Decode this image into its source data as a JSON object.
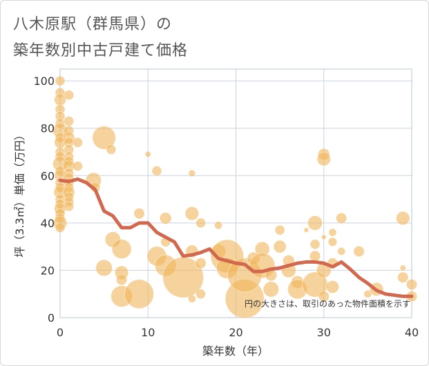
{
  "title_line1": "八木原駅（群馬県）の",
  "title_line2": "築年数別中古戸建て価格",
  "chart_data": {
    "type": "scatter",
    "title": "八木原駅（群馬県）の築年数別中古戸建て価格",
    "xlabel": "築年数（年）",
    "ylabel": "坪（3.3㎡）単価（万円）",
    "xlim": [
      0,
      40
    ],
    "ylim": [
      0,
      105
    ],
    "xticks": [
      0,
      10,
      20,
      30,
      40
    ],
    "yticks": [
      0,
      20,
      40,
      60,
      80,
      100
    ],
    "grid": true,
    "note": "円の大きさは、取引のあった物件面積を示す",
    "colors": {
      "bubble": "#f0b65a",
      "line": "#d2694f",
      "grid": "#c9d3df"
    },
    "bubbles": [
      {
        "x": 0,
        "y": 100,
        "s": 1
      },
      {
        "x": 0,
        "y": 95,
        "s": 1
      },
      {
        "x": 0,
        "y": 92,
        "s": 1.2
      },
      {
        "x": 0,
        "y": 88,
        "s": 1
      },
      {
        "x": 0,
        "y": 85,
        "s": 1
      },
      {
        "x": 0,
        "y": 82,
        "s": 1
      },
      {
        "x": 0,
        "y": 79,
        "s": 1.5
      },
      {
        "x": 0,
        "y": 76,
        "s": 1
      },
      {
        "x": 0,
        "y": 74,
        "s": 1.2
      },
      {
        "x": 0,
        "y": 70,
        "s": 1
      },
      {
        "x": 0,
        "y": 68,
        "s": 1
      },
      {
        "x": 0,
        "y": 65,
        "s": 1.5
      },
      {
        "x": 0,
        "y": 62,
        "s": 1
      },
      {
        "x": 0,
        "y": 60,
        "s": 1.2
      },
      {
        "x": 0,
        "y": 57,
        "s": 1
      },
      {
        "x": 0,
        "y": 55,
        "s": 1
      },
      {
        "x": 0,
        "y": 53,
        "s": 1.3
      },
      {
        "x": 0,
        "y": 50,
        "s": 1
      },
      {
        "x": 0,
        "y": 48,
        "s": 1
      },
      {
        "x": 0,
        "y": 46,
        "s": 1.2
      },
      {
        "x": 0,
        "y": 44,
        "s": 1
      },
      {
        "x": 0,
        "y": 42,
        "s": 1
      },
      {
        "x": 0,
        "y": 40,
        "s": 1.4
      },
      {
        "x": 0,
        "y": 38,
        "s": 1
      },
      {
        "x": 1,
        "y": 94,
        "s": 1
      },
      {
        "x": 1,
        "y": 83,
        "s": 1
      },
      {
        "x": 1,
        "y": 79,
        "s": 1
      },
      {
        "x": 1,
        "y": 76,
        "s": 1.2
      },
      {
        "x": 1,
        "y": 74,
        "s": 1
      },
      {
        "x": 1,
        "y": 71,
        "s": 1
      },
      {
        "x": 1,
        "y": 68,
        "s": 1
      },
      {
        "x": 1,
        "y": 66,
        "s": 1
      },
      {
        "x": 1,
        "y": 64,
        "s": 1.2
      },
      {
        "x": 1,
        "y": 61,
        "s": 1
      },
      {
        "x": 1,
        "y": 59,
        "s": 1
      },
      {
        "x": 1,
        "y": 57,
        "s": 1
      },
      {
        "x": 1,
        "y": 55,
        "s": 1
      },
      {
        "x": 1,
        "y": 53,
        "s": 1.2
      },
      {
        "x": 1,
        "y": 51,
        "s": 1
      },
      {
        "x": 1,
        "y": 49,
        "s": 1
      },
      {
        "x": 1,
        "y": 47,
        "s": 1
      },
      {
        "x": 2,
        "y": 74,
        "s": 1
      },
      {
        "x": 2,
        "y": 64,
        "s": 1
      },
      {
        "x": 3.8,
        "y": 58,
        "s": 1.6
      },
      {
        "x": 4,
        "y": 55,
        "s": 1
      },
      {
        "x": 5,
        "y": 76,
        "s": 2.4
      },
      {
        "x": 5.8,
        "y": 71,
        "s": 1
      },
      {
        "x": 5,
        "y": 21,
        "s": 1.7
      },
      {
        "x": 6,
        "y": 33,
        "s": 1.6
      },
      {
        "x": 7,
        "y": 29,
        "s": 2
      },
      {
        "x": 7,
        "y": 19,
        "s": 1.4
      },
      {
        "x": 7,
        "y": 16,
        "s": 1.1
      },
      {
        "x": 7,
        "y": 9,
        "s": 2.2
      },
      {
        "x": 9,
        "y": 10,
        "s": 3
      },
      {
        "x": 9,
        "y": 44,
        "s": 1.1
      },
      {
        "x": 10,
        "y": 69,
        "s": 0.6
      },
      {
        "x": 11,
        "y": 62,
        "s": 1
      },
      {
        "x": 12,
        "y": 42,
        "s": 1.2
      },
      {
        "x": 12,
        "y": 32,
        "s": 1
      },
      {
        "x": 11,
        "y": 26,
        "s": 2
      },
      {
        "x": 12,
        "y": 22,
        "s": 2.2
      },
      {
        "x": 14,
        "y": 17,
        "s": 4.2
      },
      {
        "x": 15,
        "y": 61,
        "s": 0.7
      },
      {
        "x": 15,
        "y": 44,
        "s": 1.4
      },
      {
        "x": 16,
        "y": 40,
        "s": 1
      },
      {
        "x": 15,
        "y": 28,
        "s": 1.3
      },
      {
        "x": 16,
        "y": 23,
        "s": 1.1
      },
      {
        "x": 16,
        "y": 10,
        "s": 1
      },
      {
        "x": 15,
        "y": 8,
        "s": 0.8
      },
      {
        "x": 18,
        "y": 39,
        "s": 0.8
      },
      {
        "x": 18,
        "y": 28,
        "s": 1.5
      },
      {
        "x": 19,
        "y": 26,
        "s": 3.4
      },
      {
        "x": 19,
        "y": 21,
        "s": 2.2
      },
      {
        "x": 21,
        "y": 8,
        "s": 4
      },
      {
        "x": 21,
        "y": 18,
        "s": 3.5
      },
      {
        "x": 22,
        "y": 25,
        "s": 1.3
      },
      {
        "x": 23,
        "y": 29,
        "s": 1.5
      },
      {
        "x": 23,
        "y": 22,
        "s": 2.6
      },
      {
        "x": 24,
        "y": 12,
        "s": 1.6
      },
      {
        "x": 24,
        "y": 18,
        "s": 1.2
      },
      {
        "x": 25,
        "y": 37,
        "s": 1
      },
      {
        "x": 25,
        "y": 30,
        "s": 1.3
      },
      {
        "x": 26,
        "y": 24,
        "s": 1.2
      },
      {
        "x": 26,
        "y": 20,
        "s": 1.5
      },
      {
        "x": 27,
        "y": 15,
        "s": 1.3
      },
      {
        "x": 27,
        "y": 12,
        "s": 2
      },
      {
        "x": 28,
        "y": 37,
        "s": 0.5
      },
      {
        "x": 29,
        "y": 40,
        "s": 1.5
      },
      {
        "x": 29,
        "y": 31,
        "s": 1
      },
      {
        "x": 29,
        "y": 26,
        "s": 1.1
      },
      {
        "x": 29,
        "y": 14,
        "s": 2.6
      },
      {
        "x": 30,
        "y": 69,
        "s": 1.2
      },
      {
        "x": 30,
        "y": 67,
        "s": 1.4
      },
      {
        "x": 30,
        "y": 34,
        "s": 0.5
      },
      {
        "x": 30,
        "y": 20,
        "s": 1.5
      },
      {
        "x": 30,
        "y": 9,
        "s": 1.1
      },
      {
        "x": 31,
        "y": 36,
        "s": 0.8
      },
      {
        "x": 31,
        "y": 32,
        "s": 0.9
      },
      {
        "x": 31,
        "y": 23,
        "s": 1.1
      },
      {
        "x": 31,
        "y": 13,
        "s": 1.3
      },
      {
        "x": 32,
        "y": 42,
        "s": 1.1
      },
      {
        "x": 32,
        "y": 28,
        "s": 0.8
      },
      {
        "x": 34,
        "y": 28,
        "s": 1.1
      },
      {
        "x": 35,
        "y": 10,
        "s": 0.8
      },
      {
        "x": 36,
        "y": 12,
        "s": 1.4
      },
      {
        "x": 39,
        "y": 42,
        "s": 1.4
      },
      {
        "x": 39,
        "y": 21,
        "s": 0.6
      },
      {
        "x": 39,
        "y": 17,
        "s": 1.1
      },
      {
        "x": 40,
        "y": 14,
        "s": 1.1
      },
      {
        "x": 40,
        "y": 9,
        "s": 1.1
      }
    ],
    "trend": {
      "x": [
        0,
        1,
        2,
        3,
        4,
        5,
        6,
        7,
        8,
        9,
        10,
        11,
        12,
        13,
        14,
        15,
        16,
        17,
        18,
        19,
        20,
        21,
        22,
        23,
        24,
        25,
        26,
        27,
        28,
        29,
        30,
        31,
        32,
        33,
        34,
        35,
        36,
        37,
        38,
        39,
        40
      ],
      "y": [
        58,
        57.5,
        58.5,
        57,
        54,
        45,
        43,
        38,
        38,
        40,
        40,
        36,
        34,
        32,
        26,
        26.5,
        27.5,
        29,
        25,
        24,
        23,
        22.5,
        19.5,
        19.5,
        20.5,
        21,
        22,
        23,
        23.5,
        23.5,
        23,
        21.5,
        23.5,
        20.5,
        17,
        14.5,
        11.5,
        10,
        9.5,
        9,
        9
      ]
    }
  }
}
